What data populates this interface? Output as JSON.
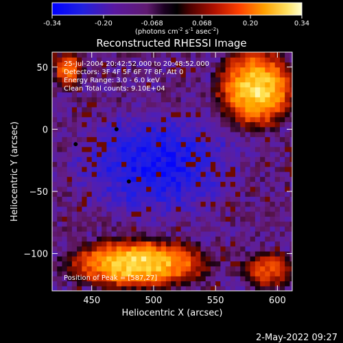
{
  "colorbar": {
    "ticks": [
      "-0.34",
      "-0.20",
      "-0.068",
      "0.068",
      "0.20",
      "0.34"
    ],
    "tick_values": [
      -0.34,
      -0.2,
      -0.068,
      0.068,
      0.2,
      0.34
    ],
    "range": [
      -0.34,
      0.34
    ],
    "units": "(photons cm",
    "units_exp1": "-2",
    "units_mid": " s",
    "units_exp2": "-1",
    "units_tail": " asec",
    "units_exp3": "-2",
    "units_close": ")",
    "colormap": [
      "#0000ff",
      "#3a1fbf",
      "#5a18a0",
      "#7a1a6a",
      "#000000",
      "#6a0a0a",
      "#c02000",
      "#ff6a00",
      "#ffc000",
      "#ffffc0"
    ]
  },
  "title": "Reconstructed RHESSI Image",
  "info": {
    "line1": "25-Jul-2004 20:42:52.000 to 20:48:52.000",
    "line2": "Detectors: 3F 4F 5F 6F 7F 8F, Att 0",
    "line3": "Energy Range: 3.0 - 6.0 keV",
    "line4": "Clean     Total counts: 9.10E+04"
  },
  "peak_label": "Position of Peak = [587,27]",
  "footer": "2-May-2022 09:27",
  "chart_data": {
    "type": "heatmap",
    "title": "Reconstructed RHESSI Image",
    "xlabel": "Heliocentric X (arcsec)",
    "ylabel": "Heliocentric Y (arcsec)",
    "xlim": [
      418,
      612
    ],
    "ylim": [
      -130,
      62
    ],
    "x_ticks": [
      450,
      500,
      550,
      600
    ],
    "x_tick_labels": [
      "450",
      "500",
      "550",
      "600"
    ],
    "y_ticks": [
      50,
      0,
      -50,
      -100
    ],
    "y_tick_labels": [
      "50",
      "0",
      "−50",
      "−100"
    ],
    "value_range": [
      -0.34,
      0.34
    ],
    "features": [
      {
        "region": "upper-right",
        "x": [
          550,
          612
        ],
        "y": [
          0,
          62
        ],
        "level": 0.3
      },
      {
        "region": "lower-left",
        "x": [
          430,
          540
        ],
        "y": [
          -130,
          -90
        ],
        "level": 0.3
      },
      {
        "region": "lower-right",
        "x": [
          570,
          612
        ],
        "y": [
          -130,
          -100
        ],
        "level": 0.15
      },
      {
        "region": "upper-left",
        "x": [
          418,
          440
        ],
        "y": [
          30,
          62
        ],
        "level": 0.2
      },
      {
        "region": "center",
        "x": [
          440,
          560
        ],
        "y": [
          -70,
          10
        ],
        "level": -0.3
      }
    ],
    "dots": [
      {
        "x": 470,
        "y": 0
      },
      {
        "x": 437,
        "y": -12
      },
      {
        "x": 480,
        "y": -42
      }
    ]
  }
}
